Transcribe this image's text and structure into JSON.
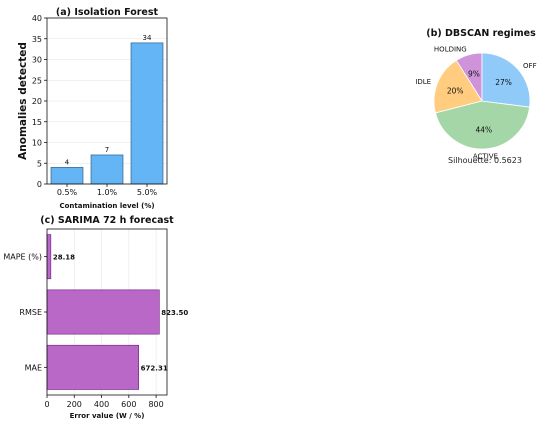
{
  "chart_data": [
    {
      "type": "bar",
      "title": "(a) Isolation Forest",
      "xlabel": "Contamination level (%)",
      "ylabel": "Anomalies detected",
      "categories": [
        "0.5%",
        "1.0%",
        "5.0%"
      ],
      "values": [
        4,
        7,
        34
      ],
      "data_labels": [
        "4",
        "7",
        "34"
      ],
      "ylim": [
        0,
        40
      ],
      "yticks": [
        0,
        5,
        10,
        15,
        20,
        25,
        30,
        35,
        40
      ],
      "grid": "y",
      "colors": {
        "bar": "#64b5f6",
        "edge": "#1f4e79"
      }
    },
    {
      "type": "pie",
      "title": "(b) DBSCAN regimes",
      "labels": [
        "HOLDING",
        "IDLE",
        "ACTIVE",
        "OFF"
      ],
      "values": [
        9,
        20,
        44,
        27
      ],
      "pct_labels": [
        "9%",
        "20%",
        "44%",
        "27%"
      ],
      "colors": [
        "#ce93d8",
        "#ffcc80",
        "#a5d6a7",
        "#90caf9"
      ],
      "annotation": "Silhouette: 0.5623"
    },
    {
      "type": "bar",
      "orientation": "horizontal",
      "title": "(c) SARIMA 72 h forecast",
      "xlabel": "Error value (W / %)",
      "categories": [
        "MAPE (%)",
        "RMSE",
        "MAE"
      ],
      "values": [
        28.18,
        823.5,
        672.31
      ],
      "data_labels": [
        "28.18",
        "823.50",
        "672.31"
      ],
      "xlim": [
        0,
        880
      ],
      "xticks": [
        0,
        200,
        400,
        600,
        800
      ],
      "grid": "x",
      "colors": {
        "bar": "#ba68c8",
        "edge": "#6a1b7a"
      }
    }
  ]
}
